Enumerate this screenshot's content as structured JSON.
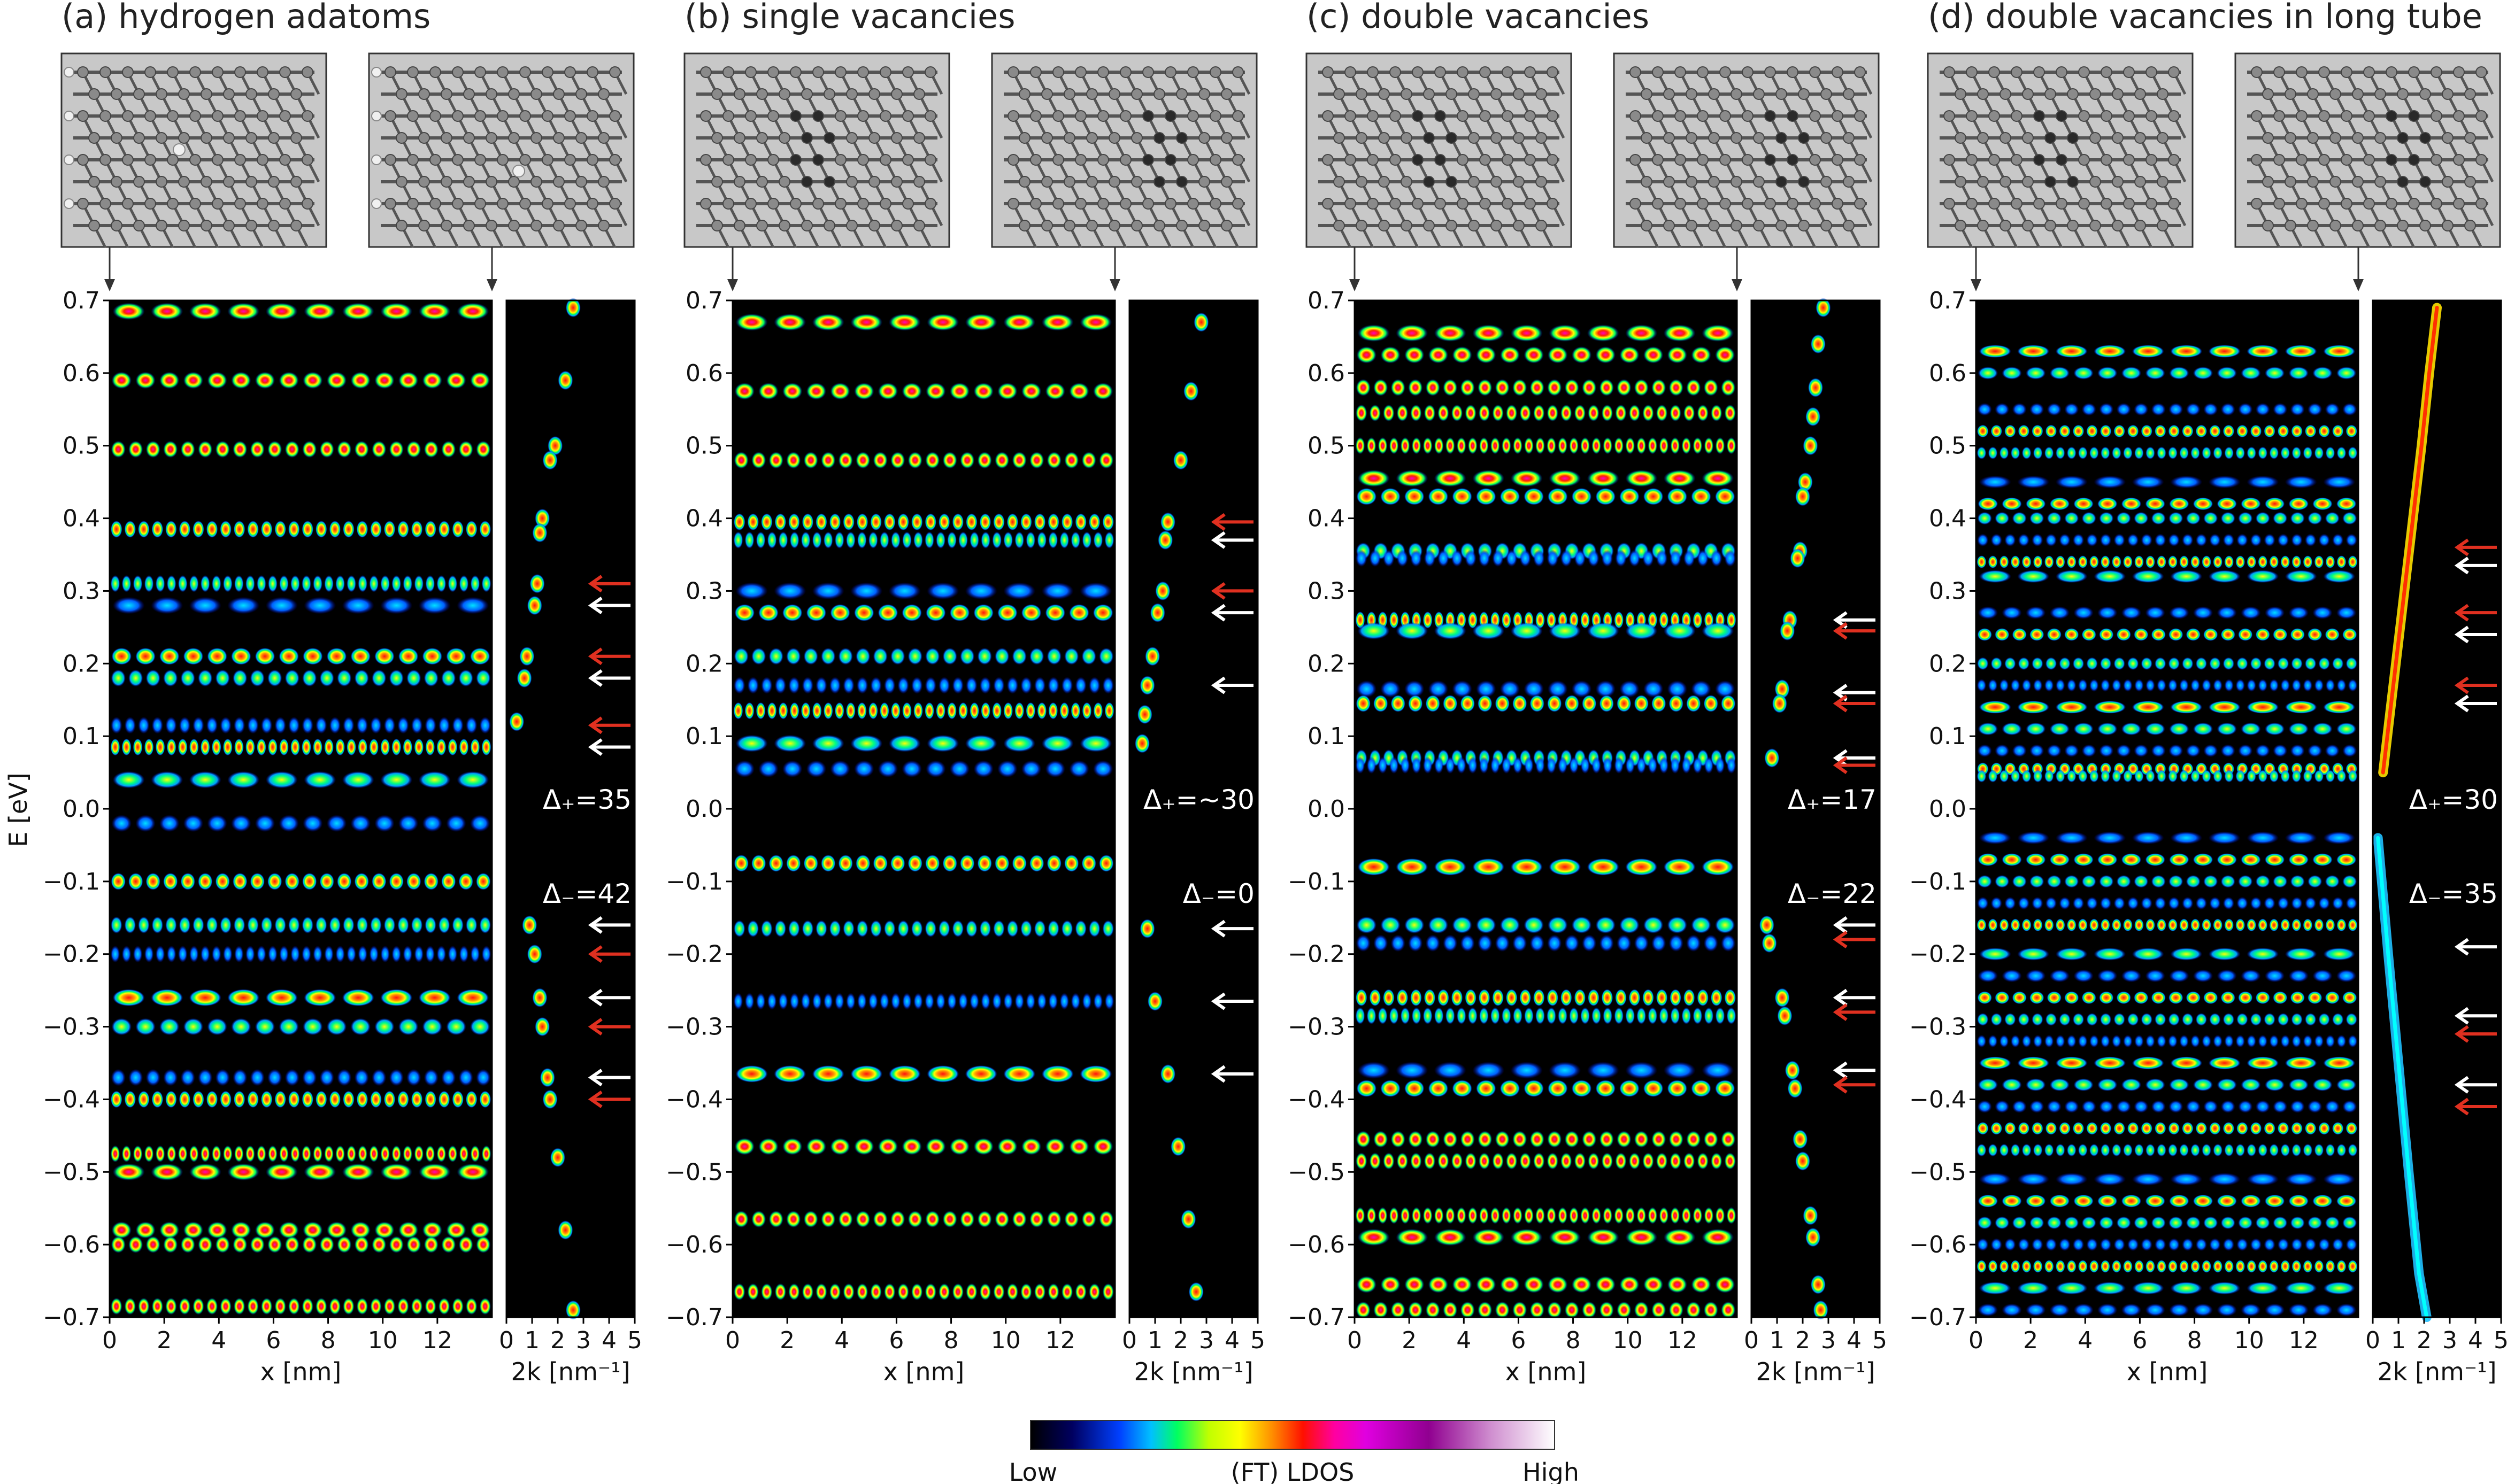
{
  "figure": {
    "colors": {
      "background": "#ffffff",
      "plot_background": "#000000",
      "tube_panel_background": "#c8c8c8",
      "atom_gray": "#8a8a8a",
      "atom_defect": "#2a2a2a",
      "hydrogen": "#f0f0f0",
      "arrow_red": "#e03020",
      "arrow_white": "#ffffff",
      "colormap": [
        "#000000",
        "#0000c8",
        "#0080ff",
        "#00e0ff",
        "#00ff40",
        "#ffff00",
        "#ff8000",
        "#ff0000",
        "#ff00c0",
        "#b000b0",
        "#ffffff"
      ]
    },
    "panels": [
      {
        "id": "a",
        "title": "(a) hydrogen adatoms",
        "defect_type": "hydrogen",
        "xlabel": "x [nm]",
        "x_ticks": [
          "0",
          "2",
          "4",
          "6",
          "8",
          "10",
          "12"
        ],
        "k_xlabel": "2k [nm⁻¹]",
        "k_ticks": [
          "0",
          "1",
          "2",
          "3",
          "4",
          "5"
        ],
        "gap_plus": "Δ₊=35",
        "gap_minus": "Δ₋=42",
        "level_energies": [
          0.685,
          0.59,
          0.495,
          0.385,
          0.31,
          0.28,
          0.21,
          0.18,
          0.115,
          0.085,
          0.04,
          -0.02,
          -0.1,
          -0.16,
          -0.2,
          -0.26,
          -0.3,
          -0.37,
          -0.4,
          -0.475,
          -0.5,
          -0.58,
          -0.6,
          -0.685
        ],
        "arrows_plus": [
          {
            "E": 0.31,
            "color": "red"
          },
          {
            "E": 0.28,
            "color": "white"
          },
          {
            "E": 0.21,
            "color": "red"
          },
          {
            "E": 0.18,
            "color": "white"
          },
          {
            "E": 0.115,
            "color": "red"
          },
          {
            "E": 0.085,
            "color": "white"
          }
        ],
        "arrows_minus": [
          {
            "E": -0.16,
            "color": "white"
          },
          {
            "E": -0.2,
            "color": "red"
          },
          {
            "E": -0.26,
            "color": "white"
          },
          {
            "E": -0.3,
            "color": "red"
          },
          {
            "E": -0.37,
            "color": "white"
          },
          {
            "E": -0.4,
            "color": "red"
          }
        ],
        "k_spots": [
          [
            2.6,
            0.69
          ],
          [
            2.3,
            0.59
          ],
          [
            1.9,
            0.5
          ],
          [
            1.7,
            0.48
          ],
          [
            1.4,
            0.4
          ],
          [
            1.3,
            0.38
          ],
          [
            1.2,
            0.31
          ],
          [
            1.1,
            0.28
          ],
          [
            0.8,
            0.21
          ],
          [
            0.7,
            0.18
          ],
          [
            0.4,
            0.12
          ],
          [
            0.9,
            -0.16
          ],
          [
            1.1,
            -0.2
          ],
          [
            1.3,
            -0.26
          ],
          [
            1.4,
            -0.3
          ],
          [
            1.6,
            -0.37
          ],
          [
            1.7,
            -0.4
          ],
          [
            2.0,
            -0.48
          ],
          [
            2.3,
            -0.58
          ],
          [
            2.6,
            -0.69
          ]
        ]
      },
      {
        "id": "b",
        "title": "(b) single vacancies",
        "defect_type": "single",
        "xlabel": "x [nm]",
        "x_ticks": [
          "0",
          "2",
          "4",
          "6",
          "8",
          "10",
          "12"
        ],
        "k_xlabel": "2k [nm⁻¹]",
        "k_ticks": [
          "0",
          "1",
          "2",
          "3",
          "4",
          "5"
        ],
        "gap_plus": "Δ₊=~30",
        "gap_minus": "Δ₋=0",
        "level_energies": [
          0.67,
          0.575,
          0.48,
          0.395,
          0.37,
          0.3,
          0.27,
          0.21,
          0.17,
          0.135,
          0.09,
          0.055,
          -0.075,
          -0.165,
          -0.265,
          -0.365,
          -0.465,
          -0.565,
          -0.665
        ],
        "arrows_plus": [
          {
            "E": 0.395,
            "color": "red"
          },
          {
            "E": 0.37,
            "color": "white"
          },
          {
            "E": 0.3,
            "color": "red"
          },
          {
            "E": 0.27,
            "color": "white"
          },
          {
            "E": 0.17,
            "color": "white"
          }
        ],
        "arrows_minus": [
          {
            "E": -0.165,
            "color": "white"
          },
          {
            "E": -0.265,
            "color": "white"
          },
          {
            "E": -0.365,
            "color": "white"
          }
        ],
        "k_spots": [
          [
            2.8,
            0.67
          ],
          [
            2.4,
            0.575
          ],
          [
            2.0,
            0.48
          ],
          [
            1.5,
            0.395
          ],
          [
            1.4,
            0.37
          ],
          [
            1.3,
            0.3
          ],
          [
            1.1,
            0.27
          ],
          [
            0.9,
            0.21
          ],
          [
            0.7,
            0.17
          ],
          [
            0.6,
            0.13
          ],
          [
            0.5,
            0.09
          ],
          [
            0.7,
            -0.165
          ],
          [
            1.0,
            -0.265
          ],
          [
            1.5,
            -0.365
          ],
          [
            1.9,
            -0.465
          ],
          [
            2.3,
            -0.565
          ],
          [
            2.6,
            -0.665
          ]
        ]
      },
      {
        "id": "c",
        "title": "(c) double vacancies",
        "defect_type": "double",
        "xlabel": "x [nm]",
        "x_ticks": [
          "0",
          "2",
          "4",
          "6",
          "8",
          "10",
          "12"
        ],
        "k_xlabel": "2k [nm⁻¹]",
        "k_ticks": [
          "0",
          "1",
          "2",
          "3",
          "4",
          "5"
        ],
        "gap_plus": "Δ₊=17",
        "gap_minus": "Δ₋=22",
        "level_energies": [
          0.655,
          0.625,
          0.58,
          0.545,
          0.5,
          0.455,
          0.43,
          0.355,
          0.345,
          0.26,
          0.245,
          0.165,
          0.145,
          0.07,
          0.06,
          -0.08,
          -0.16,
          -0.185,
          -0.26,
          -0.285,
          -0.36,
          -0.385,
          -0.455,
          -0.485,
          -0.56,
          -0.59,
          -0.655,
          -0.69
        ],
        "arrows_plus": [
          {
            "E": 0.26,
            "color": "white"
          },
          {
            "E": 0.245,
            "color": "red"
          },
          {
            "E": 0.16,
            "color": "white"
          },
          {
            "E": 0.145,
            "color": "red"
          },
          {
            "E": 0.07,
            "color": "white"
          },
          {
            "E": 0.06,
            "color": "red"
          }
        ],
        "arrows_minus": [
          {
            "E": -0.16,
            "color": "white"
          },
          {
            "E": -0.18,
            "color": "red"
          },
          {
            "E": -0.26,
            "color": "white"
          },
          {
            "E": -0.28,
            "color": "red"
          },
          {
            "E": -0.36,
            "color": "white"
          },
          {
            "E": -0.38,
            "color": "red"
          }
        ],
        "k_spots": [
          [
            2.8,
            0.69
          ],
          [
            2.6,
            0.64
          ],
          [
            2.5,
            0.58
          ],
          [
            2.4,
            0.54
          ],
          [
            2.3,
            0.5
          ],
          [
            2.1,
            0.45
          ],
          [
            2.0,
            0.43
          ],
          [
            1.9,
            0.355
          ],
          [
            1.8,
            0.345
          ],
          [
            1.5,
            0.26
          ],
          [
            1.4,
            0.245
          ],
          [
            1.2,
            0.165
          ],
          [
            1.1,
            0.145
          ],
          [
            0.8,
            0.07
          ],
          [
            0.6,
            -0.16
          ],
          [
            0.7,
            -0.185
          ],
          [
            1.2,
            -0.26
          ],
          [
            1.3,
            -0.285
          ],
          [
            1.6,
            -0.36
          ],
          [
            1.7,
            -0.385
          ],
          [
            1.9,
            -0.455
          ],
          [
            2.0,
            -0.485
          ],
          [
            2.3,
            -0.56
          ],
          [
            2.4,
            -0.59
          ],
          [
            2.6,
            -0.655
          ],
          [
            2.7,
            -0.69
          ]
        ]
      },
      {
        "id": "d",
        "title": "(d) double vacancies in long tube",
        "defect_type": "double",
        "xlabel": "x [nm]",
        "x_ticks": [
          "0",
          "2",
          "4",
          "6",
          "8",
          "10",
          "12"
        ],
        "k_xlabel": "2k [nm⁻¹]",
        "k_ticks": [
          "0",
          "1",
          "2",
          "3",
          "4",
          "5"
        ],
        "gap_plus": "Δ₊=30",
        "gap_minus": "Δ₋=35",
        "level_energies": [
          0.63,
          0.6,
          0.55,
          0.52,
          0.49,
          0.45,
          0.42,
          0.4,
          0.37,
          0.34,
          0.32,
          0.27,
          0.24,
          0.2,
          0.17,
          0.14,
          0.11,
          0.08,
          0.055,
          0.045,
          -0.04,
          -0.07,
          -0.1,
          -0.13,
          -0.16,
          -0.2,
          -0.23,
          -0.26,
          -0.29,
          -0.32,
          -0.35,
          -0.38,
          -0.41,
          -0.44,
          -0.47,
          -0.51,
          -0.54,
          -0.57,
          -0.6,
          -0.63,
          -0.66,
          -0.69
        ],
        "arrows_plus": [
          {
            "E": 0.36,
            "color": "red"
          },
          {
            "E": 0.335,
            "color": "white"
          },
          {
            "E": 0.27,
            "color": "red"
          },
          {
            "E": 0.24,
            "color": "white"
          },
          {
            "E": 0.17,
            "color": "red"
          },
          {
            "E": 0.145,
            "color": "white"
          }
        ],
        "arrows_minus": [
          {
            "E": -0.19,
            "color": "white"
          },
          {
            "E": -0.285,
            "color": "white"
          },
          {
            "E": -0.31,
            "color": "red"
          },
          {
            "E": -0.38,
            "color": "white"
          },
          {
            "E": -0.41,
            "color": "red"
          }
        ],
        "k_line_top": [
          [
            0.4,
            0.05
          ],
          [
            0.9,
            0.2
          ],
          [
            1.4,
            0.35
          ],
          [
            1.9,
            0.5
          ],
          [
            2.2,
            0.6
          ],
          [
            2.5,
            0.69
          ]
        ],
        "k_line_bottom": [
          [
            0.2,
            -0.04
          ],
          [
            0.6,
            -0.2
          ],
          [
            1.0,
            -0.35
          ],
          [
            1.4,
            -0.5
          ],
          [
            1.8,
            -0.64
          ],
          [
            2.1,
            -0.7
          ]
        ]
      }
    ],
    "ylabel": "E [eV]",
    "y_ticks": [
      "0.7",
      "0.6",
      "0.5",
      "0.4",
      "0.3",
      "0.2",
      "0.1",
      "0.0",
      "−0.1",
      "−0.2",
      "−0.3",
      "−0.4",
      "−0.5",
      "−0.6",
      "−0.7"
    ],
    "colorbar": {
      "low_label": "Low",
      "mid_label": "(FT) LDOS",
      "high_label": "High"
    }
  }
}
